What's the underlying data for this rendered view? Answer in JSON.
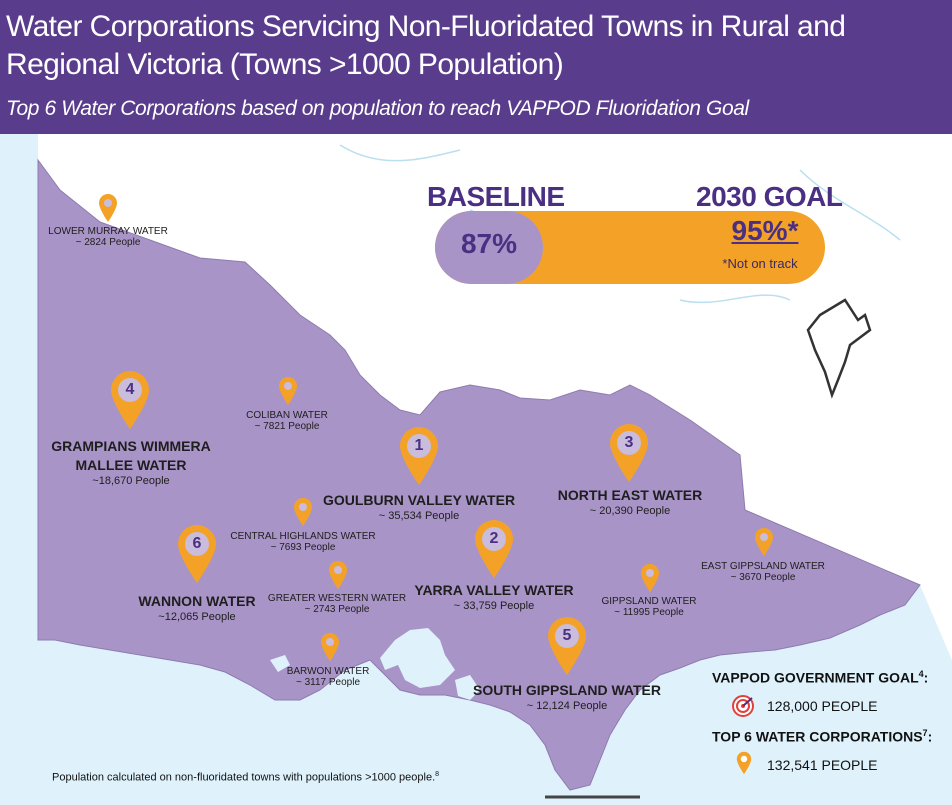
{
  "header": {
    "title": "Water Corporations Servicing Non-Fluoridated Towns in Rural and Regional Victoria (Towns >1000 Population)",
    "subtitle": "Top 6 Water Corporations based on population to reach VAPPOD  Fluoridation Goal"
  },
  "progress": {
    "baseline_label": "BASELINE",
    "baseline_value": "87%",
    "goal_label": "2030 GOAL",
    "goal_value": "95%*",
    "goal_note": "*Not on track"
  },
  "corporations": [
    {
      "name": "LOWER MURRAY WATER",
      "people": "~ 2824 People"
    },
    {
      "name": "COLIBAN WATER",
      "people": "~ 7821 People"
    },
    {
      "name": "GRAMPIANS WIMMERA MALLEE WATER",
      "name_line1": "GRAMPIANS WIMMERA",
      "name_line2": "MALLEE WATER",
      "people": "~18,670 People",
      "rank": "4"
    },
    {
      "name": "GOULBURN VALLEY WATER",
      "people": "~ 35,534 People",
      "rank": "1"
    },
    {
      "name": "NORTH EAST WATER",
      "people": "~ 20,390 People",
      "rank": "3"
    },
    {
      "name": "CENTRAL HIGHLANDS WATER",
      "people": "~ 7693 People"
    },
    {
      "name": "WANNON WATER",
      "people": "~12,065 People",
      "rank": "6"
    },
    {
      "name": "GREATER WESTERN WATER",
      "people": "~ 2743 People"
    },
    {
      "name": "YARRA VALLEY WATER",
      "people": "~ 33,759 People",
      "rank": "2"
    },
    {
      "name": "GIPPSLAND WATER",
      "people": "~ 11995 People"
    },
    {
      "name": "EAST GIPPSLAND WATER",
      "people": "~ 3670 People"
    },
    {
      "name": "BARWON WATER",
      "people": "~ 3117 People"
    },
    {
      "name": "SOUTH GIPPSLAND WATER",
      "people": "~ 12,124 People",
      "rank": "5"
    }
  ],
  "legend": {
    "gov_goal_label": "VAPPOD GOVERNMENT GOAL",
    "gov_goal_sup": "4",
    "gov_goal_colon": ":",
    "gov_goal_value": "128,000 PEOPLE",
    "top6_label": "TOP 6 WATER CORPORATIONS",
    "top6_sup": "7",
    "top6_colon": ":",
    "top6_value": "132,541 PEOPLE"
  },
  "footnote": {
    "text": "Population calculated on non-fluoridated towns with populations >1000 people.",
    "sup": "8"
  },
  "colors": {
    "header_bg": "#5a3c8c",
    "victoria_fill": "#a994c7",
    "pin_orange": "#f4a227",
    "sea": "#dff2fb",
    "text_purple": "#4a2f83"
  },
  "icons": {
    "target": "target-icon",
    "pin": "map-pin-icon"
  }
}
